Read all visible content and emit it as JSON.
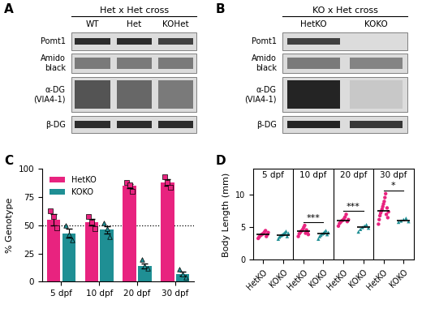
{
  "panel_labels": [
    "A",
    "B",
    "C",
    "D"
  ],
  "blots": [
    {
      "title": "Het x Het cross",
      "lanes": [
        "WT",
        "Het",
        "KOHet"
      ],
      "rows": [
        "Pomt1",
        "Amido\nblack",
        "α-DG\n(VIA4-1)",
        "β-DG"
      ]
    },
    {
      "title": "KO x Het cross",
      "lanes": [
        "HetKO",
        "KOKO"
      ],
      "rows": [
        "Pomt1",
        "Amido\nblack",
        "α-DG\n(VIA4-1)",
        "β-DG"
      ]
    }
  ],
  "chart_data": [
    {
      "type": "bar",
      "ylabel": "% Genotype",
      "categories": [
        "5 dpf",
        "10 dpf",
        "20 dpf",
        "30 dpf"
      ],
      "ylim": [
        0,
        100
      ],
      "yticks": [
        0,
        25,
        50,
        75,
        100
      ],
      "grid": false,
      "legend": "upper left",
      "reference_line": 50,
      "series": [
        {
          "name": "HetKO",
          "color": "#e8237f",
          "marker": "s",
          "values": [
            55,
            53,
            85,
            88
          ],
          "errors": [
            5,
            3,
            2,
            3
          ],
          "points": [
            [
              63,
              58,
              48
            ],
            [
              58,
              53,
              47
            ],
            [
              88,
              86,
              80
            ],
            [
              93,
              88,
              84
            ]
          ]
        },
        {
          "name": "KOKO",
          "color": "#1f8f94",
          "marker": "^",
          "values": [
            43,
            46,
            14,
            7
          ],
          "errors": [
            4,
            3,
            2,
            2
          ],
          "points": [
            [
              50,
              42,
              37
            ],
            [
              52,
              47,
              40
            ],
            [
              20,
              14,
              12
            ],
            [
              11,
              7,
              4
            ]
          ]
        }
      ]
    },
    {
      "type": "scatter",
      "ylabel": "Body Length (mm)",
      "categories": [
        "HetKO",
        "KOKO",
        "HetKO",
        "KOKO",
        "HetKO",
        "KOKO",
        "HetKO",
        "KOKO"
      ],
      "groups": [
        "5 dpf",
        "10 dpf",
        "20 dpf",
        "30 dpf"
      ],
      "significance": [
        null,
        "***",
        "***",
        "*"
      ],
      "ylim": [
        0,
        14
      ],
      "yticks": [
        0,
        5,
        10
      ],
      "grid": false,
      "series": [
        {
          "name": "HetKO",
          "color": "#e8237f",
          "marker": "o",
          "means": [
            3.9,
            4.4,
            6.0,
            7.5
          ],
          "values": [
            [
              3.3,
              3.5,
              3.7,
              3.8,
              3.9,
              4.0,
              4.1,
              4.3,
              4.5,
              3.6,
              3.9,
              4.2
            ],
            [
              3.6,
              4.0,
              4.2,
              4.4,
              4.5,
              4.7,
              5.0,
              5.3,
              4.1,
              4.6,
              4.3,
              3.9
            ],
            [
              5.2,
              5.6,
              5.8,
              6.0,
              6.1,
              6.3,
              6.6,
              7.0,
              5.9,
              6.2
            ],
            [
              5.5,
              6.2,
              6.8,
              7.2,
              7.5,
              7.8,
              8.2,
              8.6,
              9.0,
              9.6,
              10.2,
              7.0,
              8.0,
              6.5,
              7.4
            ]
          ]
        },
        {
          "name": "KOKO",
          "color": "#1f8f94",
          "marker": "^",
          "means": [
            3.8,
            4.0,
            5.0,
            6.0
          ],
          "values": [
            [
              3.2,
              3.5,
              3.7,
              3.8,
              3.9,
              4.0,
              4.2,
              4.4,
              3.6,
              4.1
            ],
            [
              3.2,
              3.6,
              3.8,
              4.0,
              4.1,
              4.3,
              4.5,
              3.9,
              4.2
            ],
            [
              4.3,
              4.7,
              5.0,
              5.2,
              5.4,
              4.9
            ],
            [
              5.8,
              6.0,
              6.2,
              6.4,
              5.9
            ]
          ]
        }
      ]
    }
  ]
}
